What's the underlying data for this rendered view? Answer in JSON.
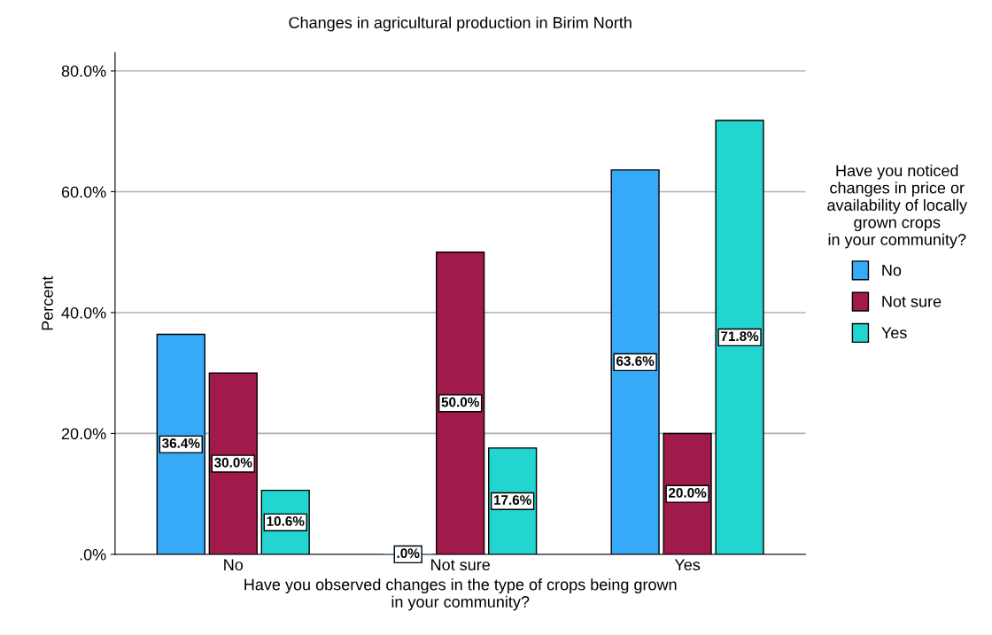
{
  "chart_data": {
    "type": "bar",
    "title": "Changes in agricultural production in Birim North",
    "xlabel": "Have you observed changes in the type of crops being grown\nin your community?",
    "ylabel": "Percent",
    "legend_title": "Have you noticed\nchanges in price or\navailability of locally\ngrown crops\nin your community?",
    "categories": [
      "No",
      "Not sure",
      "Yes"
    ],
    "series": [
      {
        "name": "No",
        "color": "#36a9f7",
        "values": [
          36.4,
          0.0,
          63.6
        ],
        "value_labels": [
          "36.4%",
          ".0%",
          "63.6%"
        ]
      },
      {
        "name": "Not sure",
        "color": "#a01a4c",
        "values": [
          30.0,
          50.0,
          20.0
        ],
        "value_labels": [
          "30.0%",
          "50.0%",
          "20.0%"
        ]
      },
      {
        "name": "Yes",
        "color": "#23d5d0",
        "values": [
          10.6,
          17.6,
          71.8
        ],
        "value_labels": [
          "10.6%",
          "17.6%",
          "71.8%"
        ]
      }
    ],
    "ylim": [
      0,
      83
    ],
    "yticks": [
      {
        "value": 0,
        "label": ".0%"
      },
      {
        "value": 20,
        "label": "20.0%"
      },
      {
        "value": 40,
        "label": "40.0%"
      },
      {
        "value": 60,
        "label": "60.0%"
      },
      {
        "value": 80,
        "label": "80.0%"
      }
    ],
    "grid": "y",
    "legend": "right"
  }
}
